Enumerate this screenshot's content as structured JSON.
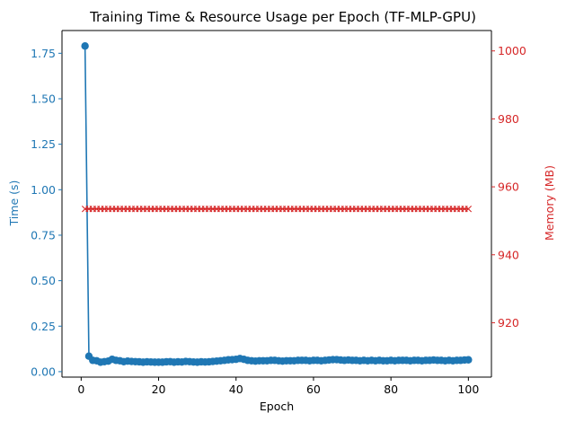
{
  "chart_data": {
    "type": "line",
    "title": "Training Time & Resource Usage per Epoch (TF-MLP-GPU)",
    "xlabel": "Epoch",
    "ylabel_left": "Time (s)",
    "ylabel_right": "Memory (MB)",
    "xlim": [
      -4.95,
      105.95
    ],
    "ylim_left": [
      -0.03,
      1.875
    ],
    "ylim_right": [
      904,
      1006
    ],
    "x_ticks": [
      0,
      20,
      40,
      60,
      80,
      100
    ],
    "y_left_ticks": [
      "0.00",
      "0.25",
      "0.50",
      "0.75",
      "1.00",
      "1.25",
      "1.50",
      "1.75"
    ],
    "y_right_ticks": [
      "920",
      "940",
      "960",
      "980",
      "1000"
    ],
    "grid": false,
    "colors": {
      "left": "#1f77b4",
      "right": "#d62728"
    },
    "series": [
      {
        "name": "Time (s)",
        "axis": "left",
        "marker": "circle",
        "x": [
          1,
          2,
          3,
          4,
          5,
          6,
          7,
          8,
          9,
          10,
          11,
          12,
          13,
          14,
          15,
          16,
          17,
          18,
          19,
          20,
          21,
          22,
          23,
          24,
          25,
          26,
          27,
          28,
          29,
          30,
          31,
          32,
          33,
          34,
          35,
          36,
          37,
          38,
          39,
          40,
          41,
          42,
          43,
          44,
          45,
          46,
          47,
          48,
          49,
          50,
          51,
          52,
          53,
          54,
          55,
          56,
          57,
          58,
          59,
          60,
          61,
          62,
          63,
          64,
          65,
          66,
          67,
          68,
          69,
          70,
          71,
          72,
          73,
          74,
          75,
          76,
          77,
          78,
          79,
          80,
          81,
          82,
          83,
          84,
          85,
          86,
          87,
          88,
          89,
          90,
          91,
          92,
          93,
          94,
          95,
          96,
          97,
          98,
          99,
          100
        ],
        "values": [
          1.79,
          0.085,
          0.062,
          0.06,
          0.052,
          0.055,
          0.058,
          0.068,
          0.062,
          0.06,
          0.055,
          0.058,
          0.056,
          0.055,
          0.054,
          0.052,
          0.054,
          0.053,
          0.052,
          0.052,
          0.052,
          0.054,
          0.055,
          0.052,
          0.054,
          0.053,
          0.056,
          0.055,
          0.053,
          0.052,
          0.054,
          0.053,
          0.054,
          0.056,
          0.058,
          0.06,
          0.062,
          0.065,
          0.066,
          0.068,
          0.072,
          0.068,
          0.062,
          0.06,
          0.058,
          0.06,
          0.06,
          0.06,
          0.062,
          0.062,
          0.06,
          0.058,
          0.06,
          0.06,
          0.06,
          0.062,
          0.062,
          0.062,
          0.06,
          0.062,
          0.062,
          0.06,
          0.062,
          0.064,
          0.066,
          0.066,
          0.064,
          0.062,
          0.064,
          0.062,
          0.062,
          0.06,
          0.062,
          0.06,
          0.062,
          0.06,
          0.062,
          0.06,
          0.06,
          0.062,
          0.06,
          0.062,
          0.062,
          0.062,
          0.06,
          0.062,
          0.062,
          0.06,
          0.062,
          0.062,
          0.064,
          0.062,
          0.062,
          0.06,
          0.062,
          0.06,
          0.062,
          0.062,
          0.064,
          0.065
        ]
      },
      {
        "name": "Memory (MB)",
        "axis": "right",
        "marker": "x",
        "x": [
          1,
          2,
          3,
          4,
          5,
          6,
          7,
          8,
          9,
          10,
          11,
          12,
          13,
          14,
          15,
          16,
          17,
          18,
          19,
          20,
          21,
          22,
          23,
          24,
          25,
          26,
          27,
          28,
          29,
          30,
          31,
          32,
          33,
          34,
          35,
          36,
          37,
          38,
          39,
          40,
          41,
          42,
          43,
          44,
          45,
          46,
          47,
          48,
          49,
          50,
          51,
          52,
          53,
          54,
          55,
          56,
          57,
          58,
          59,
          60,
          61,
          62,
          63,
          64,
          65,
          66,
          67,
          68,
          69,
          70,
          71,
          72,
          73,
          74,
          75,
          76,
          77,
          78,
          79,
          80,
          81,
          82,
          83,
          84,
          85,
          86,
          87,
          88,
          89,
          90,
          91,
          92,
          93,
          94,
          95,
          96,
          97,
          98,
          99,
          100
        ],
        "values": [
          953.5,
          953.5,
          953.5,
          953.5,
          953.5,
          953.5,
          953.5,
          953.5,
          953.5,
          953.5,
          953.5,
          953.5,
          953.5,
          953.5,
          953.5,
          953.5,
          953.5,
          953.5,
          953.5,
          953.5,
          953.5,
          953.5,
          953.5,
          953.5,
          953.5,
          953.5,
          953.5,
          953.5,
          953.5,
          953.5,
          953.5,
          953.5,
          953.5,
          953.5,
          953.5,
          953.5,
          953.5,
          953.5,
          953.5,
          953.5,
          953.5,
          953.5,
          953.5,
          953.5,
          953.5,
          953.5,
          953.5,
          953.5,
          953.5,
          953.5,
          953.5,
          953.5,
          953.5,
          953.5,
          953.5,
          953.5,
          953.5,
          953.5,
          953.5,
          953.5,
          953.5,
          953.5,
          953.5,
          953.5,
          953.5,
          953.5,
          953.5,
          953.5,
          953.5,
          953.5,
          953.5,
          953.5,
          953.5,
          953.5,
          953.5,
          953.5,
          953.5,
          953.5,
          953.5,
          953.5,
          953.5,
          953.5,
          953.5,
          953.5,
          953.5,
          953.5,
          953.5,
          953.5,
          953.5,
          953.5,
          953.5,
          953.5,
          953.5,
          953.5,
          953.5,
          953.5,
          953.5,
          953.5,
          953.5,
          953.5
        ]
      }
    ]
  }
}
